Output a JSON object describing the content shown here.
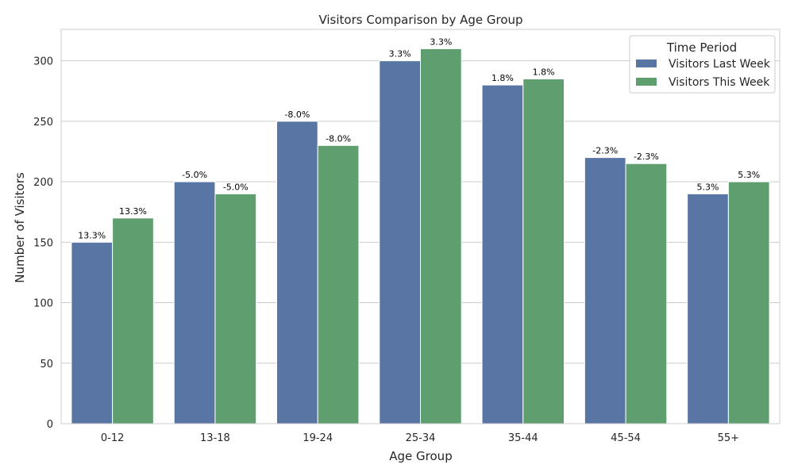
{
  "chart_data": {
    "type": "bar",
    "title": "Visitors Comparison by Age Group",
    "xlabel": "Age Group",
    "ylabel": "Number of Visitors",
    "categories": [
      "0-12",
      "13-18",
      "19-24",
      "25-34",
      "35-44",
      "45-54",
      "55+"
    ],
    "series": [
      {
        "name": "Visitors Last Week",
        "color": "#5875a4",
        "values": [
          150,
          200,
          250,
          300,
          280,
          220,
          190
        ],
        "labels": [
          "13.3%",
          "-5.0%",
          "-8.0%",
          "3.3%",
          "1.8%",
          "-2.3%",
          "5.3%"
        ]
      },
      {
        "name": "Visitors This Week",
        "color": "#5f9e6e",
        "values": [
          170,
          190,
          230,
          310,
          285,
          215,
          200
        ],
        "labels": [
          "13.3%",
          "-5.0%",
          "-8.0%",
          "3.3%",
          "1.8%",
          "-2.3%",
          "5.3%"
        ]
      }
    ],
    "ylim": [
      0,
      326
    ],
    "yticks": [
      0,
      50,
      100,
      150,
      200,
      250,
      300
    ],
    "grid": true,
    "legend": {
      "title": "Time Period",
      "placement": "top-right"
    }
  }
}
